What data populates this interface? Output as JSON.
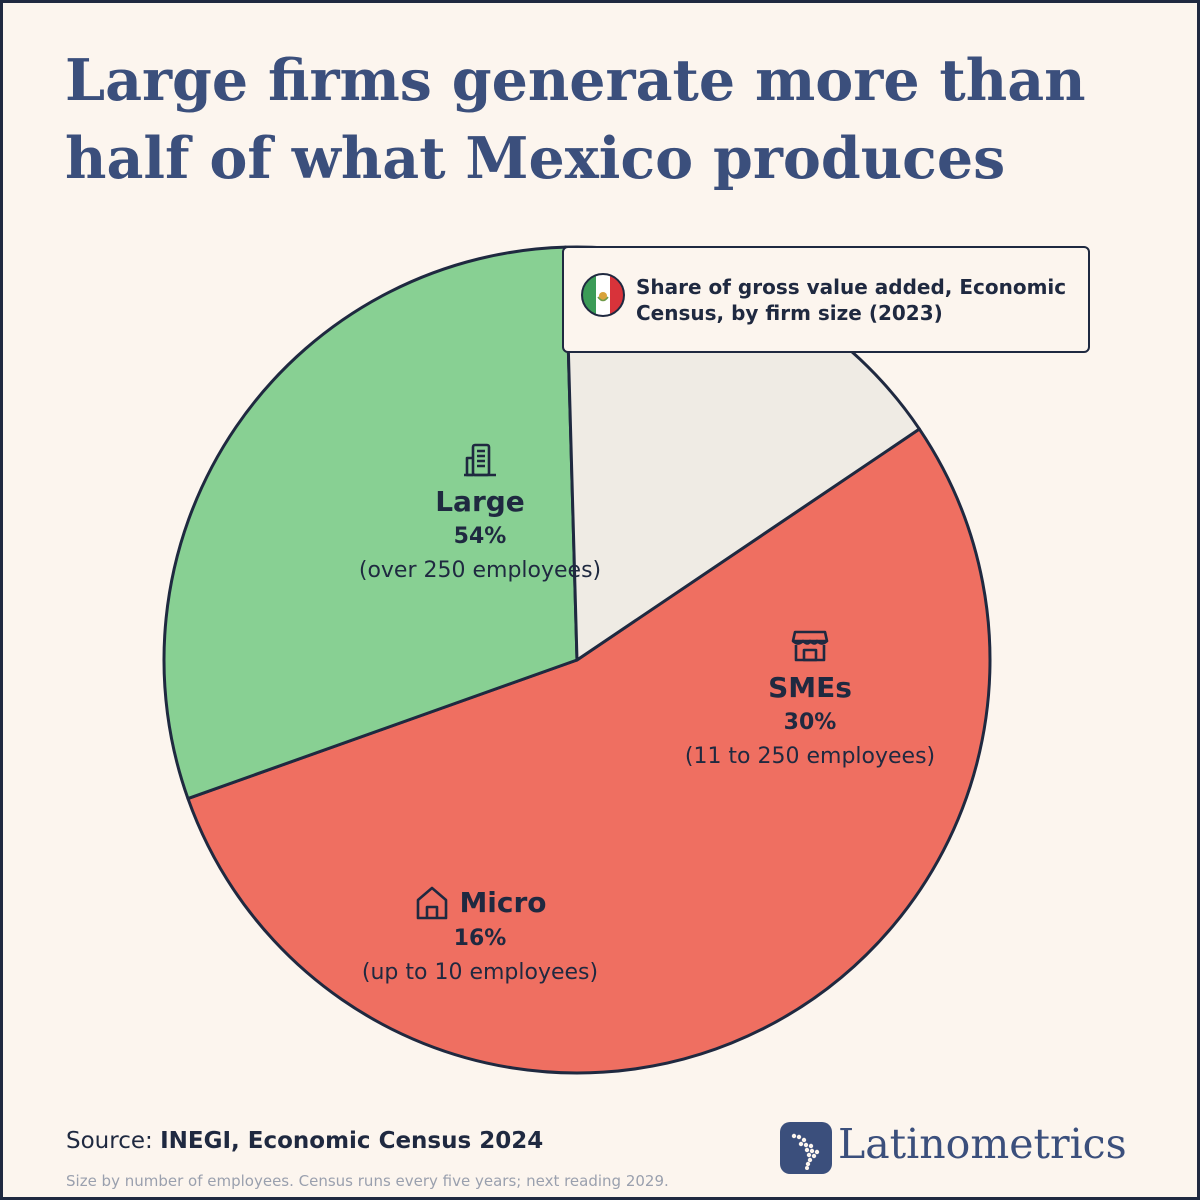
{
  "title": {
    "line1": "Large firms generate more than",
    "line2": "half of what Mexico produces"
  },
  "legend": {
    "line1": "Share of gross value added, Economic",
    "line2": "Census, by firm size (2023)",
    "flag_icon": "mexico-flag-icon"
  },
  "chart_data": {
    "type": "pie",
    "title": "Share of gross value added, Economic Census, by firm size (2023)",
    "slices": [
      {
        "name": "Large",
        "value": 54,
        "label": "54%",
        "description": "(over 250 employees)",
        "color": "#ef6f61",
        "icon": "building-icon"
      },
      {
        "name": "SMEs",
        "value": 30,
        "label": "30%",
        "description": "(11 to 250 employees)",
        "color": "#88d093",
        "icon": "storefront-icon"
      },
      {
        "name": "Micro",
        "value": 16,
        "label": "16%",
        "description": "(up to 10 employees)",
        "color": "#efebe4",
        "icon": "house-icon"
      }
    ]
  },
  "footer": {
    "source_prefix": "Source: ",
    "source_name": "INEGI, Economic Census 2024",
    "note": "Size by number of employees. Census runs every five years; next reading 2029.",
    "brand": "Latinometrics",
    "brand_icon": "latin-america-map-icon"
  },
  "colors": {
    "background": "#fcf5ee",
    "title": "#3b4f7c",
    "outline": "#1f2940"
  }
}
